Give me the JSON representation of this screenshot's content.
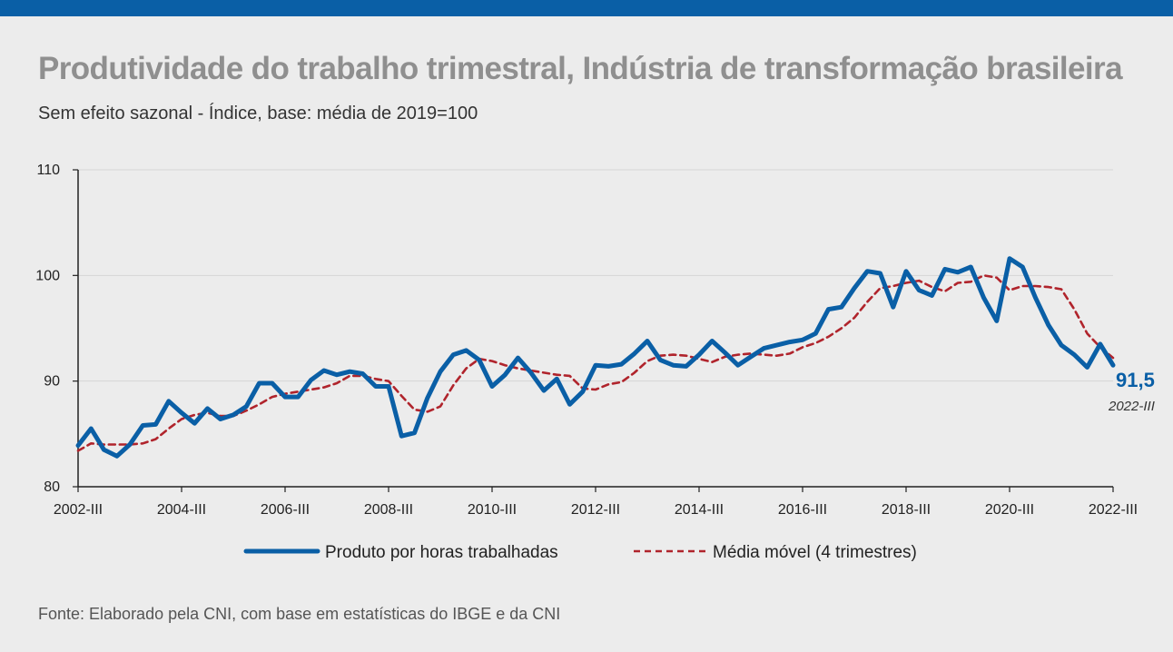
{
  "header": {
    "title": "Produtividade do trabalho trimestral, Indústria de transformação brasileira",
    "subtitle": "Sem efeito sazonal - Índice, base: média de 2019=100",
    "source": "Fonte: Elaborado pela CNI, com base em estatísticas do IBGE e da CNI"
  },
  "colors": {
    "accent_bar": "#0a5fa6",
    "series_main": "#0a5fa6",
    "series_avg": "#b0242c",
    "grid": "#d6d6d6"
  },
  "chart_data": {
    "type": "line",
    "title": "Produtividade do trabalho trimestral, Indústria de transformação brasileira",
    "subtitle": "Sem efeito sazonal - Índice, base: média de 2019=100",
    "xlabel": "",
    "ylabel": "",
    "ylim": [
      80,
      110
    ],
    "yticks": [
      "80",
      "90",
      "100",
      "110"
    ],
    "grid": true,
    "legend_position": "bottom",
    "x": [
      "2002-III",
      "2002-IV",
      "2003-I",
      "2003-II",
      "2003-III",
      "2003-IV",
      "2004-I",
      "2004-II",
      "2004-III",
      "2004-IV",
      "2005-I",
      "2005-II",
      "2005-III",
      "2005-IV",
      "2006-I",
      "2006-II",
      "2006-III",
      "2006-IV",
      "2007-I",
      "2007-II",
      "2007-III",
      "2007-IV",
      "2008-I",
      "2008-II",
      "2008-III",
      "2008-IV",
      "2009-I",
      "2009-II",
      "2009-III",
      "2009-IV",
      "2010-I",
      "2010-II",
      "2010-III",
      "2010-IV",
      "2011-I",
      "2011-II",
      "2011-III",
      "2011-IV",
      "2012-I",
      "2012-II",
      "2012-III",
      "2012-IV",
      "2013-I",
      "2013-II",
      "2013-III",
      "2013-IV",
      "2014-I",
      "2014-II",
      "2014-III",
      "2014-IV",
      "2015-I",
      "2015-II",
      "2015-III",
      "2015-IV",
      "2016-I",
      "2016-II",
      "2016-III",
      "2016-IV",
      "2017-I",
      "2017-II",
      "2017-III",
      "2017-IV",
      "2018-I",
      "2018-II",
      "2018-III",
      "2018-IV",
      "2019-I",
      "2019-II",
      "2019-III",
      "2019-IV",
      "2020-I",
      "2020-II",
      "2020-III",
      "2020-IV",
      "2021-I",
      "2021-II",
      "2021-III",
      "2021-IV",
      "2022-I",
      "2022-II",
      "2022-III"
    ],
    "xtick_labels": [
      "2002-III",
      "2004-III",
      "2006-III",
      "2008-III",
      "2010-III",
      "2012-III",
      "2014-III",
      "2016-III",
      "2018-III",
      "2020-III",
      "2022-III"
    ],
    "series": [
      {
        "name": "Produto por horas trabalhadas",
        "style": "solid",
        "values": [
          83.9,
          85.5,
          83.5,
          82.9,
          84.0,
          85.8,
          85.9,
          88.1,
          87.0,
          86.0,
          87.4,
          86.4,
          86.8,
          87.6,
          89.8,
          89.8,
          88.5,
          88.5,
          90.1,
          91.0,
          90.6,
          90.9,
          90.7,
          89.5,
          89.5,
          84.8,
          85.1,
          88.4,
          90.9,
          92.5,
          92.9,
          92.0,
          89.5,
          90.6,
          92.2,
          90.8,
          89.1,
          90.2,
          87.8,
          89.0,
          91.5,
          91.4,
          91.6,
          92.6,
          93.8,
          92.0,
          91.5,
          91.4,
          92.5,
          93.8,
          92.7,
          91.5,
          92.3,
          93.1,
          93.4,
          93.7,
          93.9,
          94.5,
          96.8,
          97.0,
          98.8,
          100.4,
          100.2,
          97.0,
          100.4,
          98.6,
          98.1,
          100.6,
          100.3,
          100.8,
          97.9,
          95.7,
          101.6,
          100.8,
          97.9,
          95.3,
          93.4,
          92.5,
          91.3,
          93.5,
          91.5
        ]
      },
      {
        "name": "Média móvel (4 trimestres)",
        "style": "dashed",
        "values": [
          83.4,
          84.1,
          84.0,
          84.0,
          84.0,
          84.1,
          84.5,
          85.5,
          86.4,
          86.8,
          87.0,
          86.7,
          86.7,
          87.2,
          87.8,
          88.5,
          88.8,
          89.0,
          89.2,
          89.4,
          89.8,
          90.5,
          90.5,
          90.2,
          90.0,
          88.6,
          87.3,
          87.1,
          87.6,
          89.6,
          91.2,
          92.1,
          91.9,
          91.5,
          91.2,
          91.0,
          90.8,
          90.6,
          90.5,
          89.3,
          89.2,
          89.7,
          89.9,
          90.8,
          91.9,
          92.4,
          92.5,
          92.4,
          92.1,
          91.8,
          92.3,
          92.5,
          92.6,
          92.5,
          92.4,
          92.6,
          93.2,
          93.6,
          94.2,
          95.0,
          96.0,
          97.5,
          98.8,
          99.0,
          99.3,
          99.5,
          98.9,
          98.5,
          99.3,
          99.4,
          100.0,
          99.8,
          98.6,
          99.0,
          99.0,
          98.9,
          98.7,
          96.8,
          94.5,
          93.2,
          92.2
        ]
      }
    ],
    "annotation": {
      "value": "91,5",
      "period": "2022-III"
    }
  }
}
